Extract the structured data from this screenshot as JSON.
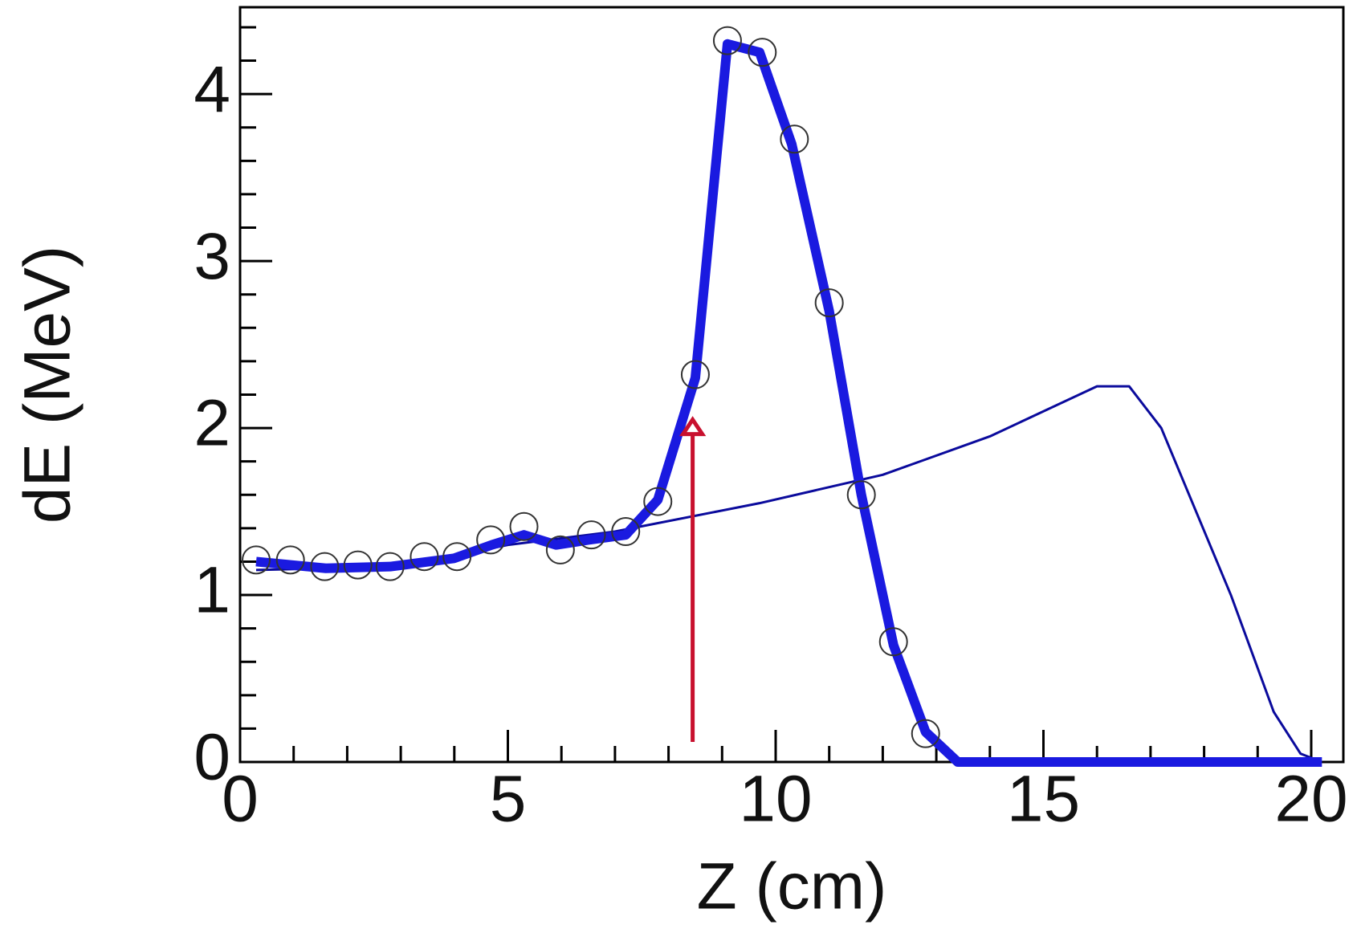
{
  "chart_data": {
    "type": "line",
    "xlabel": "Z (cm)",
    "ylabel": "dE (MeV)",
    "xlim": [
      0,
      20.6
    ],
    "ylim": [
      0,
      4.52
    ],
    "xticks": [
      0,
      5,
      10,
      15,
      20
    ],
    "yticks": [
      0,
      1,
      2,
      3,
      4
    ],
    "xminorticks": [
      1,
      2,
      3,
      4,
      6,
      7,
      8,
      9,
      11,
      12,
      13,
      14,
      16,
      17,
      18,
      19
    ],
    "yminorticks": [
      0.2,
      0.4,
      0.6,
      0.8,
      1.2,
      1.4,
      1.6,
      1.8,
      2.2,
      2.4,
      2.6,
      2.8,
      3.2,
      3.4,
      3.6,
      3.8,
      4.2,
      4.4
    ],
    "series": [
      {
        "color": "#0a0a9c",
        "width": 3,
        "x": [
          0.3,
          3,
          5,
          7,
          9.7,
          12,
          14,
          16,
          16.6,
          17.2,
          18.5,
          19.3,
          19.8,
          20.2
        ],
        "values": [
          1.15,
          1.17,
          1.3,
          1.38,
          1.55,
          1.72,
          1.95,
          2.25,
          2.25,
          2.0,
          1.0,
          0.3,
          0.05,
          0
        ]
      },
      {
        "color": "#1a1ae0",
        "width": 12,
        "x": [
          0.3,
          1.6,
          2.8,
          4.0,
          4.7,
          5.3,
          5.9,
          6.5,
          7.2,
          7.8,
          8.5,
          9.1,
          9.7,
          10.3,
          11.0,
          11.6,
          12.2,
          12.8,
          13.4,
          20.2
        ],
        "values": [
          1.2,
          1.16,
          1.17,
          1.22,
          1.3,
          1.36,
          1.3,
          1.33,
          1.36,
          1.57,
          2.3,
          4.3,
          4.25,
          3.7,
          2.7,
          1.6,
          0.7,
          0.18,
          0,
          0
        ]
      }
    ],
    "points": {
      "color": "#333333",
      "x": [
        0.3,
        0.94,
        1.58,
        2.2,
        2.8,
        3.44,
        4.05,
        4.68,
        5.3,
        5.98,
        6.56,
        7.2,
        7.8,
        8.5,
        9.1,
        9.75,
        10.35,
        11.0,
        11.6,
        12.2,
        12.8
      ],
      "values": [
        1.21,
        1.21,
        1.17,
        1.18,
        1.17,
        1.23,
        1.23,
        1.33,
        1.41,
        1.27,
        1.36,
        1.38,
        1.56,
        2.32,
        4.32,
        4.25,
        3.73,
        2.75,
        1.6,
        0.72,
        0.17
      ]
    },
    "arrow": {
      "color": "#c8102e",
      "x": 8.45,
      "y": [
        0.12,
        2.05
      ]
    }
  }
}
